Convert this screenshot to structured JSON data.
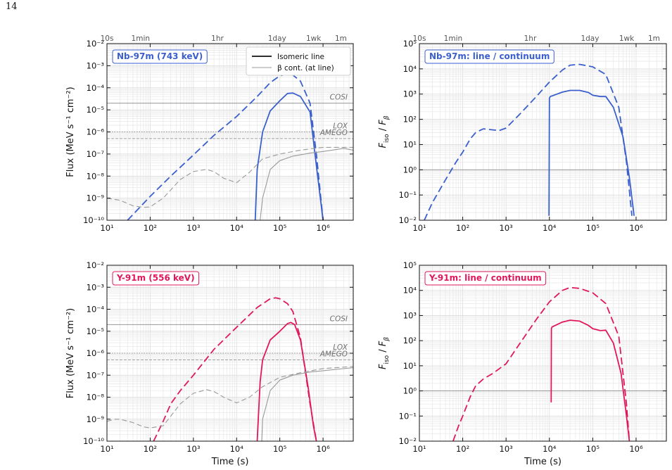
{
  "page_number": "14",
  "colors": {
    "nb": "#3a5fcd",
    "y": "#e0185a",
    "grey": "#9a9a9a",
    "grid": "#e9e9e9"
  },
  "legend": {
    "line_label": "Isomeric line",
    "cont_label": "β cont. (at line)"
  },
  "chart_data": [
    {
      "type": "line",
      "title": "Nb-97m (743 keV)",
      "xlabel": "",
      "ylabel": "Flux (MeV s⁻¹ cm⁻²)",
      "xscale": "log",
      "yscale": "log",
      "xlim": [
        10,
        5000000
      ],
      "ylim": [
        1e-10,
        0.01
      ],
      "xticklabels": [
        "10¹",
        "10²",
        "10³",
        "10⁴",
        "10⁵",
        "10⁶"
      ],
      "yticklabels": [
        "10⁻¹⁰",
        "10⁻⁹",
        "10⁻⁸",
        "10⁻⁷",
        "10⁻⁶",
        "10⁻⁵",
        "10⁻⁴",
        "10⁻³",
        "10⁻²"
      ],
      "top_axis": [
        {
          "label": "10s",
          "x": 10
        },
        {
          "label": "1min",
          "x": 60
        },
        {
          "label": "1hr",
          "x": 3600
        },
        {
          "label": "1day",
          "x": 86400
        },
        {
          "label": "1wk",
          "x": 604800
        },
        {
          "label": "1m",
          "x": 2592000
        }
      ],
      "hlines": [
        {
          "name": "COSI",
          "y": 2e-05,
          "style": "solid"
        },
        {
          "name": "LOX",
          "y": 1e-06,
          "style": "dotted"
        },
        {
          "name": "AMEGO",
          "y": 5e-07,
          "style": "dashed"
        }
      ],
      "series": [
        {
          "name": "Isomeric line",
          "style": "dashed",
          "color": "nb",
          "x": [
            30,
            100,
            300,
            1000,
            3000,
            10000,
            30000,
            60000,
            100000,
            150000,
            200000,
            300000,
            500000,
            700000,
            1000000
          ],
          "y": [
            1e-10,
            1.2e-09,
            1e-08,
            9e-08,
            7e-07,
            5e-06,
            4e-05,
            0.00017,
            0.00035,
            0.00042,
            0.00038,
            0.0002,
            2e-05,
            1e-07,
            1e-10
          ]
        },
        {
          "name": "Isomeric line",
          "style": "solid",
          "color": "nb",
          "x": [
            27000,
            30000,
            40000,
            60000,
            100000,
            150000,
            200000,
            300000,
            500000,
            700000,
            1000000
          ],
          "y": [
            1e-10,
            2e-08,
            1e-06,
            9e-06,
            2.6e-05,
            5.5e-05,
            5.8e-05,
            4e-05,
            8e-06,
            3e-08,
            1e-10
          ]
        },
        {
          "name": "β cont. (at line)",
          "style": "dashed",
          "color": "grey",
          "x": [
            10,
            20,
            40,
            70,
            100,
            200,
            500,
            1000,
            2000,
            3000,
            5000,
            10000,
            20000,
            40000,
            100000,
            300000,
            1000000,
            5000000
          ],
          "y": [
            1e-09,
            8e-10,
            4.5e-10,
            3.8e-10,
            4e-10,
            1e-09,
            7e-09,
            1.6e-08,
            2e-08,
            1.6e-08,
            8e-09,
            5e-09,
            1.5e-08,
            6e-08,
            1e-07,
            1.5e-07,
            2e-07,
            2e-07
          ]
        },
        {
          "name": "β cont. (at line)",
          "style": "solid",
          "color": "grey",
          "x": [
            35000,
            40000,
            60000,
            100000,
            200000,
            500000,
            1000000,
            3000000,
            5000000
          ],
          "y": [
            1e-10,
            1e-09,
            2e-08,
            5e-08,
            8e-08,
            1.1e-07,
            1.3e-07,
            1.8e-07,
            1.5e-07
          ]
        }
      ]
    },
    {
      "type": "line",
      "title": "Nb-97m: line / continuum",
      "xlabel": "",
      "ylabel": "F_iso / F_β",
      "xscale": "log",
      "yscale": "log",
      "xlim": [
        10,
        5000000
      ],
      "ylim": [
        0.01,
        100000
      ],
      "xticklabels": [
        "10¹",
        "10²",
        "10³",
        "10⁴",
        "10⁵",
        "10⁶"
      ],
      "yticklabels": [
        "10⁻²",
        "10⁻¹",
        "10⁰",
        "10¹",
        "10²",
        "10³",
        "10⁴",
        "10⁵"
      ],
      "top_axis": [
        {
          "label": "10s",
          "x": 10
        },
        {
          "label": "1min",
          "x": 60
        },
        {
          "label": "1hr",
          "x": 3600
        },
        {
          "label": "1day",
          "x": 86400
        },
        {
          "label": "1wk",
          "x": 604800
        },
        {
          "label": "1m",
          "x": 2592000
        }
      ],
      "hlines": [
        {
          "name": "",
          "y": 1,
          "style": "solid"
        }
      ],
      "series": [
        {
          "style": "dashed",
          "color": "nb",
          "x": [
            13,
            20,
            40,
            70,
            100,
            150,
            200,
            300,
            500,
            700,
            1000,
            2000,
            5000,
            10000,
            20000,
            30000,
            50000,
            100000,
            200000,
            400000,
            600000,
            800000
          ],
          "y": [
            0.01,
            0.05,
            0.4,
            2,
            5,
            17,
            30,
            42,
            38,
            36,
            45,
            150,
            800,
            3000,
            9000,
            14000,
            15000,
            12000,
            6000,
            300,
            2,
            0.015
          ]
        },
        {
          "style": "solid",
          "color": "nb",
          "x": [
            9800,
            10000,
            10500,
            20000,
            30000,
            50000,
            80000,
            100000,
            150000,
            200000,
            300000,
            500000,
            700000,
            900000
          ],
          "y": [
            0.015,
            700,
            800,
            1200,
            1400,
            1400,
            1150,
            900,
            800,
            800,
            300,
            20,
            0.5,
            0.015
          ]
        }
      ]
    },
    {
      "type": "line",
      "title": "Y-91m (556 keV)",
      "xlabel": "Time (s)",
      "ylabel": "Flux (MeV s⁻¹ cm⁻²)",
      "xscale": "log",
      "yscale": "log",
      "xlim": [
        10,
        5000000
      ],
      "ylim": [
        1e-10,
        0.01
      ],
      "xticklabels": [
        "10¹",
        "10²",
        "10³",
        "10⁴",
        "10⁵",
        "10⁶"
      ],
      "yticklabels": [
        "10⁻¹⁰",
        "10⁻⁹",
        "10⁻⁸",
        "10⁻⁷",
        "10⁻⁶",
        "10⁻⁵",
        "10⁻⁴",
        "10⁻³",
        "10⁻²"
      ],
      "hlines": [
        {
          "name": "COSI",
          "y": 2e-05,
          "style": "solid"
        },
        {
          "name": "LOX",
          "y": 1e-06,
          "style": "dotted"
        },
        {
          "name": "AMEGO",
          "y": 5e-07,
          "style": "dashed"
        }
      ],
      "series": [
        {
          "style": "dashed",
          "color": "y",
          "x": [
            120,
            200,
            300,
            500,
            1000,
            3000,
            10000,
            30000,
            60000,
            80000,
            100000,
            150000,
            200000,
            300000,
            500000,
            700000
          ],
          "y": [
            1e-10,
            8e-10,
            5e-09,
            2e-08,
            1e-07,
            1.5e-06,
            1.5e-05,
            0.00012,
            0.0003,
            0.00033,
            0.0003,
            0.00018,
            8e-05,
            5e-06,
            5e-09,
            1e-10
          ]
        },
        {
          "style": "solid",
          "color": "y",
          "x": [
            30000,
            35000,
            40000,
            60000,
            100000,
            150000,
            180000,
            220000,
            300000,
            450000,
            600000,
            700000
          ],
          "y": [
            1e-10,
            5e-08,
            5e-07,
            4e-06,
            1e-05,
            2.2e-05,
            2.5e-05,
            2e-05,
            4e-06,
            3e-08,
            5e-10,
            1e-10
          ]
        },
        {
          "style": "dashed",
          "color": "grey",
          "x": [
            10,
            15,
            20,
            40,
            70,
            100,
            200,
            500,
            1000,
            2000,
            3000,
            5000,
            10000,
            20000,
            40000,
            100000,
            300000,
            1000000,
            5000000
          ],
          "y": [
            8e-10,
            1e-09,
            1e-09,
            7e-10,
            4.5e-10,
            4e-10,
            5e-10,
            5e-09,
            1.5e-08,
            2.2e-08,
            1.8e-08,
            1e-08,
            5.5e-09,
            1e-08,
            3e-08,
            8e-08,
            1.3e-07,
            2e-07,
            2.5e-07
          ]
        },
        {
          "style": "solid",
          "color": "grey",
          "x": [
            38000,
            40000,
            60000,
            100000,
            200000,
            500000,
            1000000,
            5000000
          ],
          "y": [
            1e-10,
            1e-09,
            2e-08,
            6e-08,
            1e-07,
            1.4e-07,
            1.6e-07,
            2.2e-07
          ]
        }
      ]
    },
    {
      "type": "line",
      "title": "Y-91m: line / continuum",
      "xlabel": "Time (s)",
      "ylabel": "F_iso / F_β",
      "xscale": "log",
      "yscale": "log",
      "xlim": [
        10,
        5000000
      ],
      "ylim": [
        0.01,
        100000
      ],
      "xticklabels": [
        "10¹",
        "10²",
        "10³",
        "10⁴",
        "10⁵",
        "10⁶"
      ],
      "yticklabels": [
        "10⁻²",
        "10⁻¹",
        "10⁰",
        "10¹",
        "10²",
        "10³",
        "10⁴",
        "10⁵"
      ],
      "hlines": [
        {
          "name": "",
          "y": 1,
          "style": "solid"
        }
      ],
      "series": [
        {
          "style": "dashed",
          "color": "y",
          "x": [
            60,
            80,
            100,
            150,
            200,
            300,
            500,
            1000,
            2000,
            5000,
            10000,
            20000,
            30000,
            50000,
            100000,
            200000,
            400000,
            600000,
            700000
          ],
          "y": [
            0.01,
            0.04,
            0.1,
            0.6,
            1.6,
            3,
            5,
            12,
            70,
            700,
            3500,
            10000,
            13000,
            12000,
            8000,
            3000,
            150,
            0.3,
            0.01
          ]
        },
        {
          "style": "solid",
          "color": "y",
          "x": [
            11000,
            11100,
            11500,
            20000,
            30000,
            50000,
            80000,
            100000,
            150000,
            200000,
            300000,
            450000,
            600000,
            700000
          ],
          "y": [
            0.35,
            300,
            350,
            550,
            650,
            600,
            400,
            300,
            250,
            260,
            80,
            5,
            0.1,
            0.01
          ]
        }
      ]
    }
  ]
}
